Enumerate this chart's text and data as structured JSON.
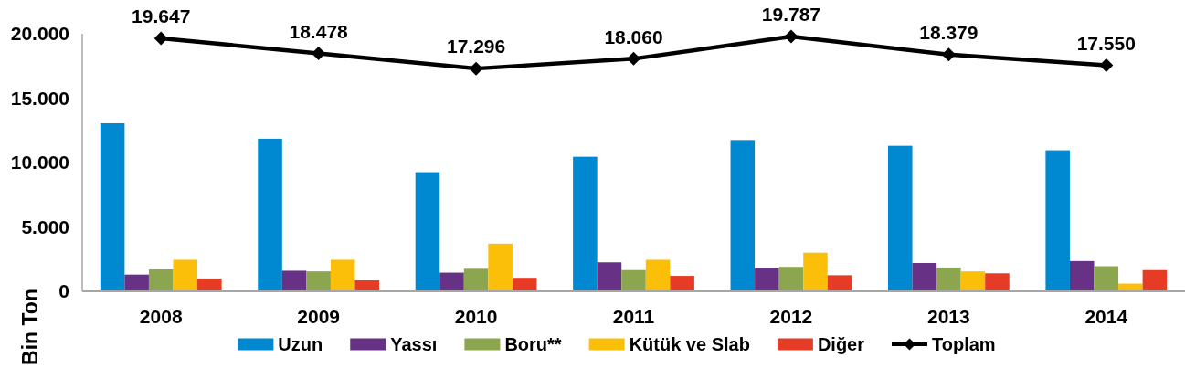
{
  "chart_data": {
    "type": "bar",
    "ylabel": "Bin Ton",
    "categories": [
      "2008",
      "2009",
      "2010",
      "2011",
      "2012",
      "2013",
      "2014"
    ],
    "series": [
      {
        "name": "Uzun",
        "color": "#0089d1",
        "values": [
          13050,
          11850,
          9250,
          10450,
          11750,
          11300,
          10950
        ]
      },
      {
        "name": "Yassı",
        "color": "#673285",
        "values": [
          1300,
          1600,
          1450,
          2250,
          1800,
          2200,
          2350
        ]
      },
      {
        "name": "Boru**",
        "color": "#8ba64e",
        "values": [
          1700,
          1550,
          1750,
          1650,
          1900,
          1850,
          1950
        ]
      },
      {
        "name": "Kütük ve Slab",
        "color": "#fbbf0a",
        "values": [
          2450,
          2450,
          3700,
          2450,
          3000,
          1550,
          600
        ]
      },
      {
        "name": "Diğer",
        "color": "#e63c26",
        "values": [
          1000,
          850,
          1050,
          1200,
          1250,
          1400,
          1650
        ]
      },
      {
        "name": "Toplam",
        "type": "line",
        "color": "#000000",
        "values": [
          19647,
          18478,
          17296,
          18060,
          19787,
          18379,
          17550
        ],
        "value_labels": [
          "19.647",
          "18.478",
          "17.296",
          "18.060",
          "19.787",
          "18.379",
          "17.550"
        ]
      }
    ],
    "ylim": [
      0,
      20000
    ],
    "yticks": [
      0,
      {
        "value": 5000,
        "label": "5.000"
      },
      {
        "value": 10000,
        "label": "10.000"
      },
      {
        "value": 15000,
        "label": "15.000"
      },
      {
        "value": 20000,
        "label": "20.000"
      }
    ],
    "legend": "bottom",
    "marker": "diamond",
    "line_style": "solid"
  }
}
